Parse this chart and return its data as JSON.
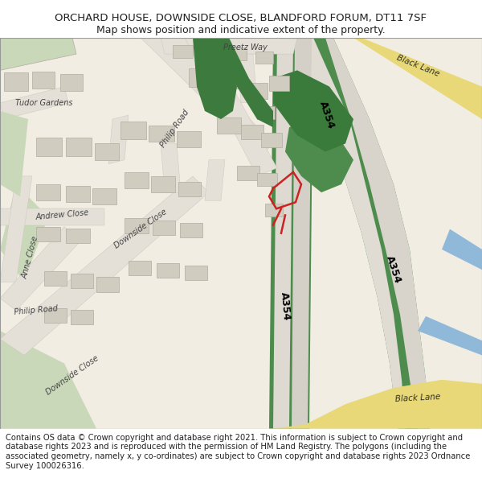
{
  "title": "ORCHARD HOUSE, DOWNSIDE CLOSE, BLANDFORD FORUM, DT11 7SF",
  "subtitle": "Map shows position and indicative extent of the property.",
  "footer": "Contains OS data © Crown copyright and database right 2021. This information is subject to Crown copyright and database rights 2023 and is reproduced with the permission of HM Land Registry. The polygons (including the associated geometry, namely x, y co-ordinates) are subject to Crown copyright and database rights 2023 Ordnance Survey 100026316.",
  "map_bg": "#f2ede3",
  "road_green": "#4d8c4d",
  "road_yellow": "#e8d878",
  "road_surface": "#e8e4dc",
  "building_color": "#d0ccbf",
  "building_edge": "#b0ac9f",
  "grass_green": "#c8d8b8",
  "water_blue": "#90b8d8",
  "plot_red": "#cc2222",
  "text_dark": "#222222",
  "road_label_color": "#333322",
  "street_label_color": "#444444",
  "a354_label": "A354",
  "black_lane_label": "Black Lane",
  "philip_road_label": "Philip Road",
  "downside_close_label": "Downside Close",
  "andrew_close_label": "Andrew Close",
  "anne_close_label": "Anne Close",
  "philip_road_label2": "Philip Road",
  "tudor_gardens_label": "Tudor Gardens",
  "preetz_way_label": "Preetz Way"
}
